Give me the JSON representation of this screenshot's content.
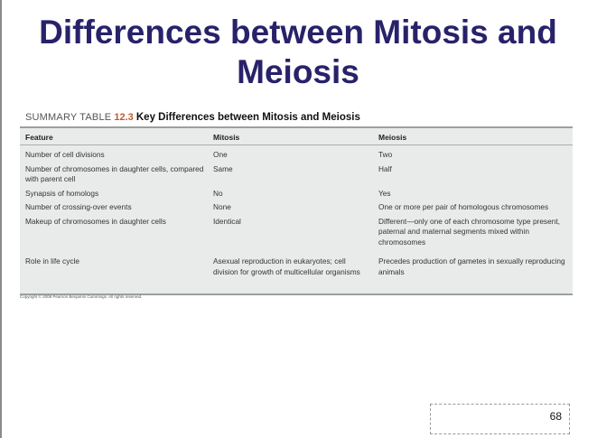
{
  "slide": {
    "title": "Differences between Mitosis and Meiosis",
    "page_number": "68",
    "copyright": "Copyright © 2008 Pearson Benjamin Cummings. All rights reserved."
  },
  "table": {
    "caption_prefix": "SUMMARY TABLE",
    "caption_number": "12.3",
    "caption_title": "Key Differences between Mitosis and Meiosis",
    "headers": [
      "Feature",
      "Mitosis",
      "Meiosis"
    ],
    "rows": [
      [
        "Number of cell divisions",
        "One",
        "Two"
      ],
      [
        "Number of chromosomes in daughter cells, compared with parent cell",
        "Same",
        "Half"
      ],
      [
        "Synapsis of homologs",
        "No",
        "Yes"
      ],
      [
        "Number of crossing-over events",
        "None",
        "One or more per pair of homologous chromosomes"
      ],
      [
        "Makeup of chromosomes in daughter cells",
        "Identical",
        "Different—only one of each chromosome type present, paternal and maternal segments mixed within chromosomes"
      ],
      [
        "Role in life cycle",
        "Asexual reproduction in eukaryotes; cell division for growth of multicellular organisms",
        "Precedes production of gametes in sexually reproducing animals"
      ]
    ]
  },
  "colors": {
    "title": "#28226a",
    "caption_number": "#c25a2a",
    "table_background": "#e9ebea"
  }
}
